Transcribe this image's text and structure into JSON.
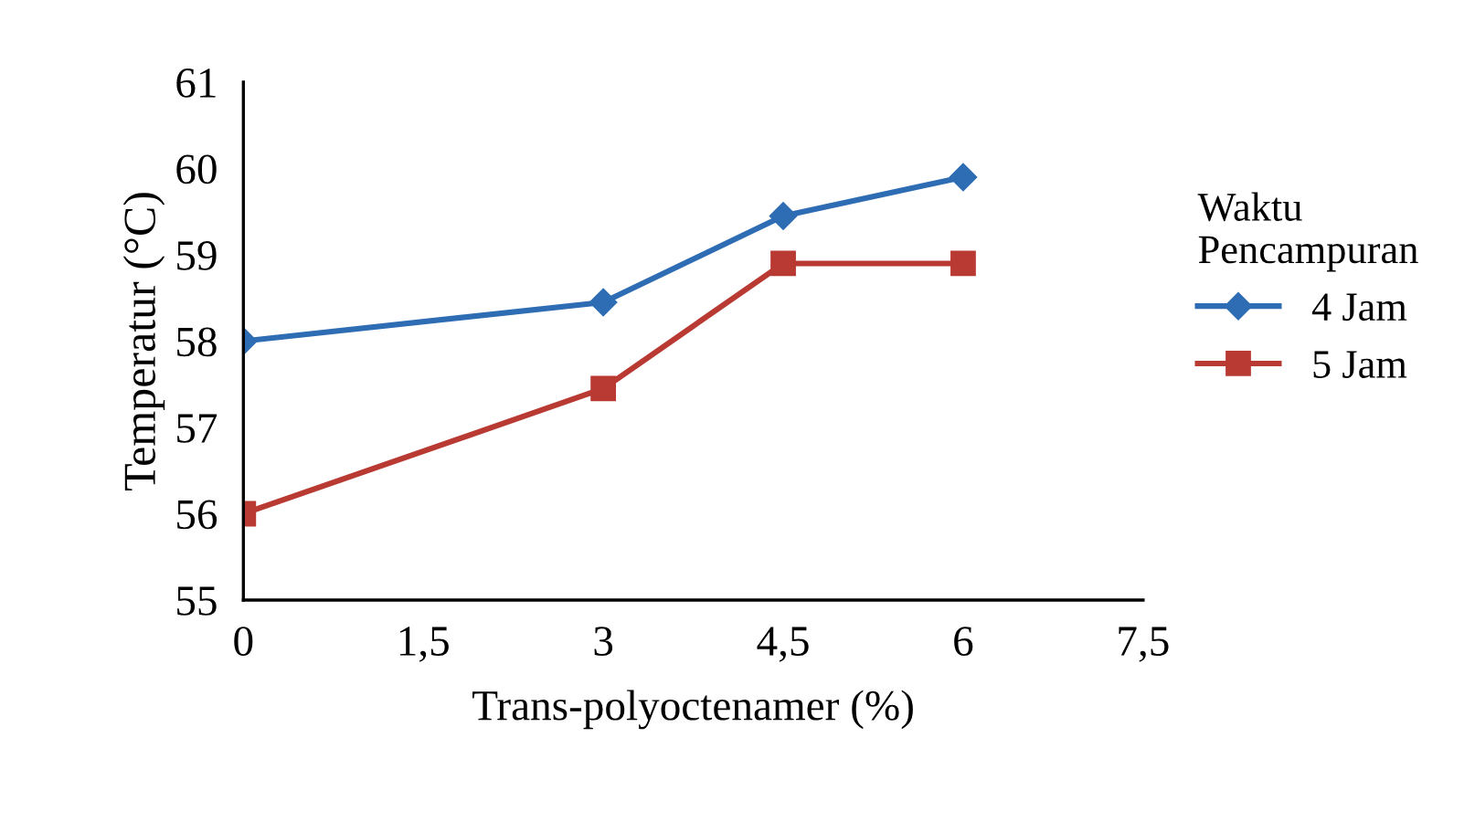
{
  "chart_data": {
    "type": "line",
    "xlabel": "Trans-polyoctenamer (%)",
    "ylabel": "Temperatur (°C)",
    "legend_title": "Waktu\nPencampuran",
    "x": [
      0,
      3,
      4.5,
      6
    ],
    "series": [
      {
        "name": "4 Jam",
        "color": "#2e6db4",
        "marker": "diamond",
        "values": [
          58.0,
          58.45,
          59.45,
          59.9
        ]
      },
      {
        "name": "5 Jam",
        "color": "#b83a32",
        "marker": "square",
        "values": [
          56.0,
          57.45,
          58.9,
          58.9
        ]
      }
    ],
    "xlim": [
      0,
      7.5
    ],
    "xticks": [
      0,
      {
        "value": 1.5,
        "label": "1,5"
      },
      3,
      {
        "value": 4.5,
        "label": "4,5"
      },
      6,
      {
        "value": 7.5,
        "label": "7,5"
      }
    ],
    "ylim": [
      55,
      61
    ],
    "yticks": [
      55,
      56,
      57,
      58,
      59,
      60,
      61
    ],
    "grid": false,
    "legend": "right",
    "line_style": "solid"
  }
}
